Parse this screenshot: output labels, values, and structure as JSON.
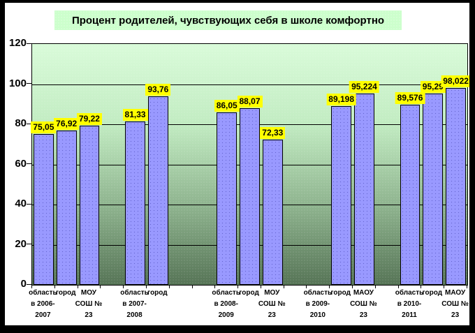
{
  "chart_data": {
    "type": "bar",
    "title": "Процент родителей, чувствующих себя в школе комфортно",
    "xlabel": "",
    "ylabel": "",
    "ylim": [
      0,
      120
    ],
    "yticks": [
      0,
      20,
      40,
      60,
      80,
      100,
      120
    ],
    "grid": true,
    "legend": false,
    "decimal_separator": ",",
    "slots": [
      {
        "axis_label_lines": [
          "область",
          "в 2006-",
          "2007"
        ],
        "value": 75.05,
        "value_label": "75,05"
      },
      {
        "axis_label_lines": [
          "город"
        ],
        "value": 76.92,
        "value_label": "76,92"
      },
      {
        "axis_label_lines": [
          "МОУ",
          "СОШ №",
          "23"
        ],
        "value": 79.22,
        "value_label": "79,22"
      },
      {
        "axis_label_lines": [],
        "value": null,
        "value_label": ""
      },
      {
        "axis_label_lines": [
          "область",
          "в 2007-",
          "2008"
        ],
        "value": 81.33,
        "value_label": "81,33"
      },
      {
        "axis_label_lines": [
          "город"
        ],
        "value": 93.76,
        "value_label": "93,76"
      },
      {
        "axis_label_lines": [],
        "value": null,
        "value_label": ""
      },
      {
        "axis_label_lines": [],
        "value": null,
        "value_label": ""
      },
      {
        "axis_label_lines": [
          "область",
          "в 2008-",
          "2009"
        ],
        "value": 86.05,
        "value_label": "86,05"
      },
      {
        "axis_label_lines": [
          "город"
        ],
        "value": 88.07,
        "value_label": "88,07"
      },
      {
        "axis_label_lines": [
          "МОУ",
          "СОШ №",
          "23"
        ],
        "value": 72.33,
        "value_label": "72,33"
      },
      {
        "axis_label_lines": [],
        "value": null,
        "value_label": ""
      },
      {
        "axis_label_lines": [
          "область",
          "в 2009-",
          "2010"
        ],
        "value": null,
        "value_label": ""
      },
      {
        "axis_label_lines": [
          "город"
        ],
        "value": 89.198,
        "value_label": "89,198"
      },
      {
        "axis_label_lines": [
          "МАОУ",
          "СОШ №",
          "23"
        ],
        "value": 95.224,
        "value_label": "95,224"
      },
      {
        "axis_label_lines": [],
        "value": null,
        "value_label": ""
      },
      {
        "axis_label_lines": [
          "область",
          "в 2010-",
          "2011"
        ],
        "value": 89.576,
        "value_label": "89,576"
      },
      {
        "axis_label_lines": [
          "город"
        ],
        "value": 95.29,
        "value_label": "95,29"
      },
      {
        "axis_label_lines": [
          "МАОУ",
          "СОШ №",
          "23"
        ],
        "value": 98.022,
        "value_label": "98,022"
      }
    ]
  },
  "colors": {
    "bar_fill": "#9999ff",
    "bar_border": "#000000",
    "value_label_bg": "#ffff00",
    "title_bg": "#ccffcc",
    "plot_bg_top": "#d9fbd9",
    "plot_bg_bottom": "#567456",
    "text": "#000000"
  }
}
